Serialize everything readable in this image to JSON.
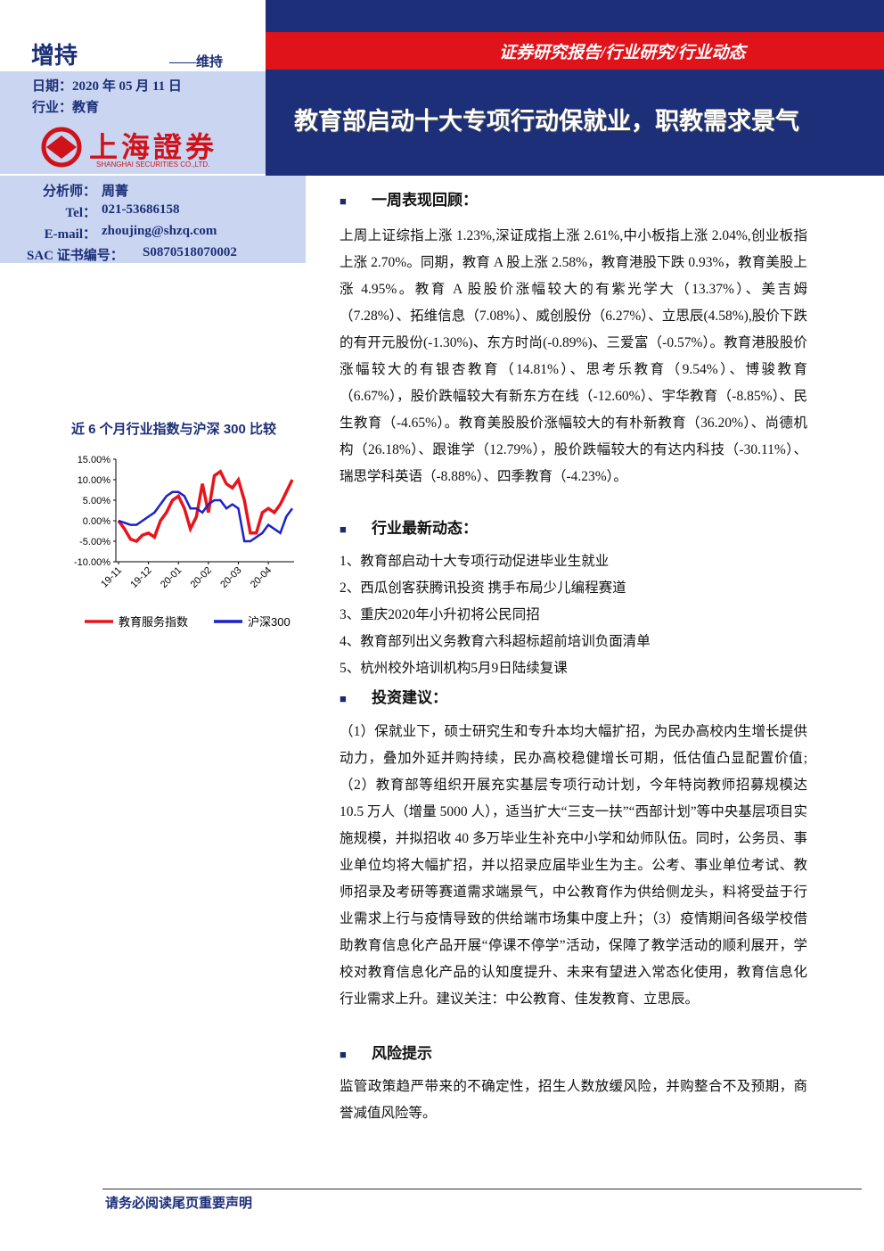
{
  "header": {
    "rating": "增持",
    "rating_prev": "——维持",
    "date": "日期：2020 年 05 月 11 日",
    "industry": "行业：教育",
    "report_type": "证券研究报告/行业研究/行业动态",
    "title": "教育部启动十大专项行动保就业，职教需求景气",
    "logo_cn": "上海證券",
    "logo_en": "SHANGHAI SECURITIES CO.,LTD."
  },
  "analyst": {
    "rows": [
      [
        "分析师：",
        "周菁"
      ],
      [
        "Tel：",
        "021-53686158"
      ],
      [
        "E-mail：",
        "zhoujing@shzq.com"
      ],
      [
        "SAC 证书编号：",
        "S0870518070002"
      ]
    ]
  },
  "chart_data": {
    "type": "line",
    "title": "近 6 个月行业指数与沪深 300 比较",
    "categories": [
      "19-11",
      null,
      null,
      null,
      null,
      "19-12",
      null,
      null,
      null,
      null,
      "20-01",
      null,
      null,
      null,
      null,
      "20-02",
      null,
      null,
      null,
      null,
      "20-03",
      null,
      null,
      null,
      null,
      "20-04",
      null,
      null,
      null,
      null
    ],
    "series": [
      {
        "name": "教育服务指数",
        "color": "#e8141c",
        "values": [
          0,
          -2,
          -4.5,
          -5,
          -3.5,
          -3,
          -4,
          0,
          2,
          5,
          6,
          3,
          -2,
          1,
          9,
          2,
          11,
          12,
          9,
          8,
          10,
          5,
          -3,
          -3,
          2,
          3,
          2,
          4,
          7,
          10
        ]
      },
      {
        "name": "沪深300",
        "color": "#1a22c8",
        "values": [
          0,
          -0.5,
          -1,
          -1,
          0,
          1,
          2,
          4,
          6,
          7,
          7,
          6,
          3,
          3,
          2,
          4,
          5,
          5,
          3,
          4,
          3,
          -5,
          -5,
          -4,
          -3,
          -1,
          -2,
          -3,
          1,
          3
        ]
      }
    ],
    "ylim": [
      -10,
      15
    ],
    "yticks": [
      {
        "value": -10,
        "label": "-10.00%"
      },
      {
        "value": -5,
        "label": "-5.00%"
      },
      {
        "value": 0,
        "label": "0.00%"
      },
      {
        "value": 5,
        "label": "5.00%"
      },
      {
        "value": 10,
        "label": "10.00%"
      },
      {
        "value": 15,
        "label": "15.00%"
      }
    ]
  },
  "sections": [
    {
      "heading": "一周表现回顾：",
      "paragraphs": [
        "上周上证综指上涨 1.23%,深证成指上涨 2.61%,中小板指上涨 2.04%,创业板指上涨 2.70%。同期，教育 A 股上涨 2.58%，教育港股下跌 0.93%，教育美股上涨 4.95%。教育 A 股股价涨幅较大的有紫光学大（13.37%）、美吉姆（7.28%）、拓维信息（7.08%）、威创股份（6.27%）、立思辰(4.58%),股价下跌的有开元股份(-1.30%)、东方时尚(-0.89%)、三爱富（-0.57%）。教育港股股价涨幅较大的有银杏教育（14.81%）、思考乐教育（9.54%）、博骏教育（6.67%），股价跌幅较大有新东方在线（-12.60%）、宇华教育（-8.85%）、民生教育（-4.65%）。教育美股股价涨幅较大的有朴新教育（36.20%）、尚德机构（26.18%）、跟谁学（12.79%），股价跌幅较大的有达内科技（-30.11%）、瑞思学科英语（-8.88%）、四季教育（-4.23%）。"
      ]
    },
    {
      "heading": "行业最新动态：",
      "items": [
        "1、教育部启动十大专项行动促进毕业生就业",
        "2、西瓜创客获腾讯投资 携手布局少儿编程赛道",
        "3、重庆2020年小升初将公民同招",
        "4、教育部列出义务教育六科超标超前培训负面清单",
        "5、杭州校外培训机构5月9日陆续复课"
      ]
    },
    {
      "heading": "投资建议：",
      "paragraphs": [
        "（1）保就业下，硕士研究生和专升本均大幅扩招，为民办高校内生增长提供动力，叠加外延并购持续，民办高校稳健增长可期，低估值凸显配置价值;（2）教育部等组织开展充实基层专项行动计划，今年特岗教师招募规模达 10.5 万人（增量 5000 人），适当扩大“三支一扶”“西部计划”等中央基层项目实施规模，并拟招收 40 多万毕业生补充中小学和幼师队伍。同时，公务员、事业单位均将大幅扩招，并以招录应届毕业生为主。公考、事业单位考试、教师招录及考研等赛道需求端景气，中公教育作为供给侧龙头，料将受益于行业需求上行与疫情导致的供给端市场集中度上升；（3）疫情期间各级学校借助教育信息化产品开展“停课不停学”活动，保障了教学活动的顺利展开，学校对教育信息化产品的认知度提升、未来有望进入常态化使用，教育信息化行业需求上升。建议关注：中公教育、佳发教育、立思辰。"
      ]
    },
    {
      "heading": "风险提示",
      "paragraphs": [
        "监管政策趋严带来的不确定性，招生人数放缓风险，并购整合不及预期，商誉减值风险等。"
      ]
    }
  ],
  "footer": "请务必阅读尾页重要声明"
}
